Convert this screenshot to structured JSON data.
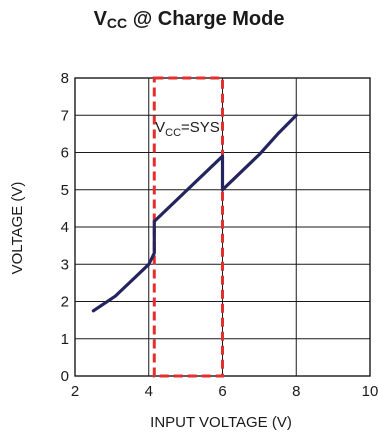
{
  "chart_data": {
    "type": "line",
    "title_main": "V",
    "title_sub": "CC",
    "title_rest": " @ Charge Mode",
    "xlabel": "INPUT VOLTAGE (V)",
    "ylabel": "VOLTAGE (V)",
    "xlim": [
      2,
      10
    ],
    "ylim": [
      0,
      8
    ],
    "xticks": [
      2,
      4,
      6,
      8,
      10
    ],
    "yticks": [
      0,
      1,
      2,
      3,
      4,
      5,
      6,
      7,
      8
    ],
    "grid": true,
    "series": [
      {
        "x": [
          2.5,
          3.1,
          4.0,
          4.15,
          4.15,
          6.0,
          6.0,
          7.0,
          7.5,
          8.0
        ],
        "y": [
          1.75,
          2.15,
          3.0,
          3.3,
          4.15,
          5.9,
          5.0,
          5.95,
          6.5,
          7.0
        ],
        "color": "#24245e"
      }
    ],
    "highlight_box": {
      "x": [
        4.15,
        6.0
      ],
      "y": [
        0,
        8
      ],
      "color": "#e52e2e"
    },
    "annotation": {
      "main": "V",
      "sub": "CC",
      "rest": "=SYS",
      "x": 5.05,
      "y": 6.55
    }
  }
}
